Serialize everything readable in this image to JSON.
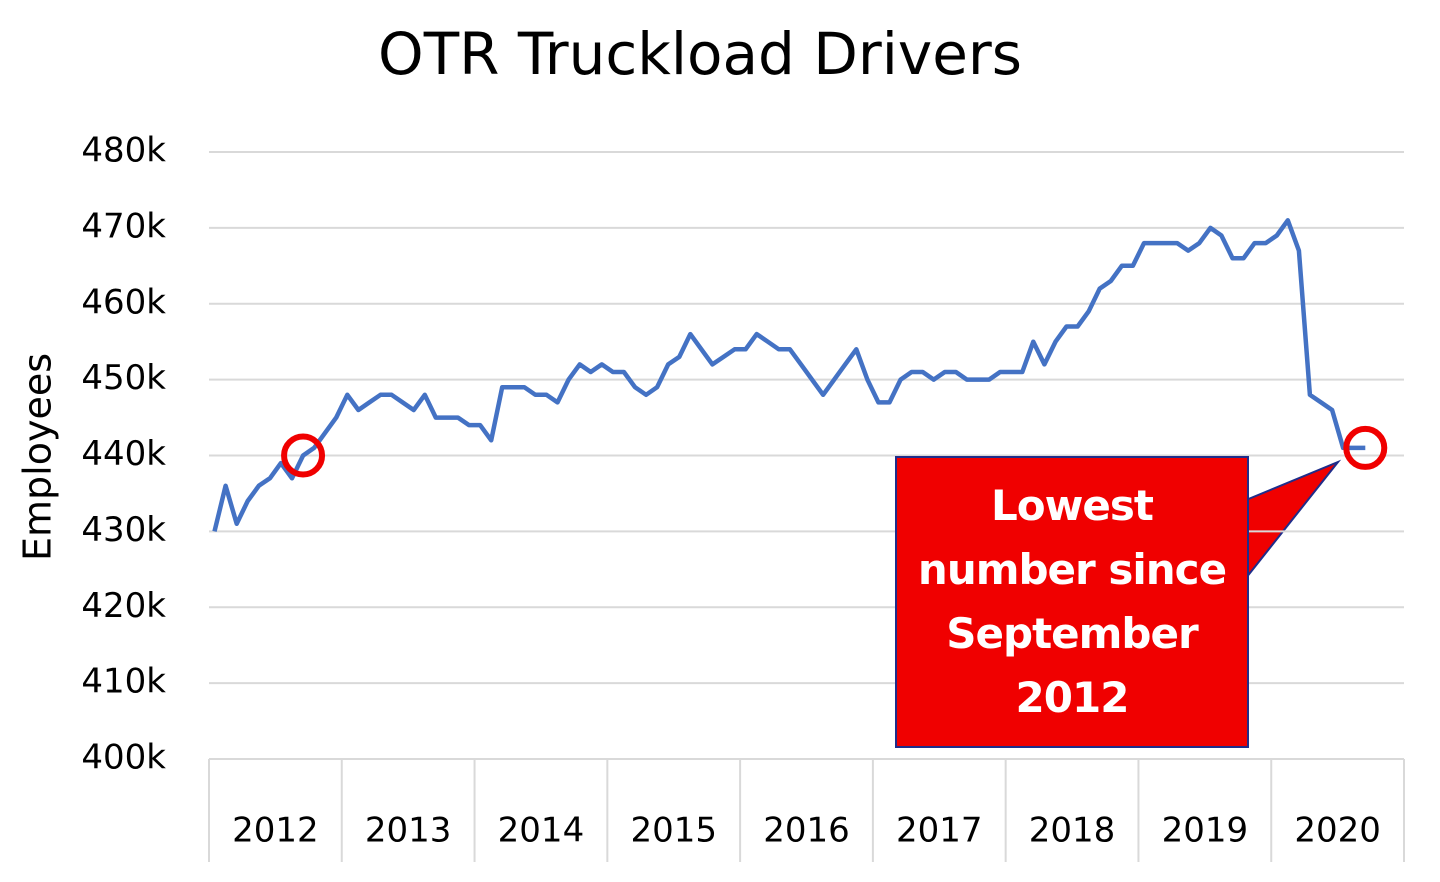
{
  "chart_data": {
    "type": "line",
    "title": "OTR Truckload Drivers",
    "y_label": "Employees",
    "categories": [
      "2012",
      null,
      null,
      null,
      null,
      null,
      null,
      null,
      null,
      null,
      null,
      null,
      "2013",
      null,
      null,
      null,
      null,
      null,
      null,
      null,
      null,
      null,
      null,
      null,
      "2014",
      null,
      null,
      null,
      null,
      null,
      null,
      null,
      null,
      null,
      null,
      null,
      "2015",
      null,
      null,
      null,
      null,
      null,
      null,
      null,
      null,
      null,
      null,
      null,
      "2016",
      null,
      null,
      null,
      null,
      null,
      null,
      null,
      null,
      null,
      null,
      null,
      "2017",
      null,
      null,
      null,
      null,
      null,
      null,
      null,
      null,
      null,
      null,
      null,
      "2018",
      null,
      null,
      null,
      null,
      null,
      null,
      null,
      null,
      null,
      null,
      null,
      "2019",
      null,
      null,
      null,
      null,
      null,
      null,
      null,
      null,
      null,
      null,
      null,
      "2020",
      null,
      null,
      null,
      null,
      null,
      null,
      null,
      null
    ],
    "values": [
      430000,
      436000,
      431000,
      434000,
      436000,
      437000,
      439000,
      437000,
      440000,
      441000,
      443000,
      445000,
      448000,
      446000,
      447000,
      448000,
      448000,
      447000,
      446000,
      448000,
      445000,
      445000,
      445000,
      444000,
      444000,
      442000,
      449000,
      449000,
      449000,
      448000,
      448000,
      447000,
      450000,
      452000,
      451000,
      452000,
      451000,
      451000,
      449000,
      448000,
      449000,
      452000,
      453000,
      456000,
      454000,
      452000,
      453000,
      454000,
      454000,
      456000,
      455000,
      454000,
      454000,
      452000,
      450000,
      448000,
      450000,
      452000,
      454000,
      450000,
      447000,
      447000,
      450000,
      451000,
      451000,
      450000,
      451000,
      451000,
      450000,
      450000,
      450000,
      451000,
      451000,
      451000,
      455000,
      452000,
      455000,
      457000,
      457000,
      459000,
      462000,
      463000,
      465000,
      465000,
      468000,
      468000,
      468000,
      468000,
      467000,
      468000,
      470000,
      469000,
      466000,
      466000,
      468000,
      468000,
      469000,
      471000,
      467000,
      448000,
      447000,
      446000,
      441000,
      441000,
      441000
    ],
    "color": "#4472c4",
    "ylim": [
      400000,
      480000
    ],
    "yticks": [
      {
        "value": 400000,
        "label": "400k"
      },
      {
        "value": 410000,
        "label": "410k"
      },
      {
        "value": 420000,
        "label": "420k"
      },
      {
        "value": 430000,
        "label": "430k"
      },
      {
        "value": 440000,
        "label": "440k"
      },
      {
        "value": 450000,
        "label": "450k"
      },
      {
        "value": 460000,
        "label": "460k"
      },
      {
        "value": 470000,
        "label": "470k"
      },
      {
        "value": 480000,
        "label": "480k"
      }
    ],
    "grid": true,
    "annotation": "Lowest number since September 2012"
  }
}
